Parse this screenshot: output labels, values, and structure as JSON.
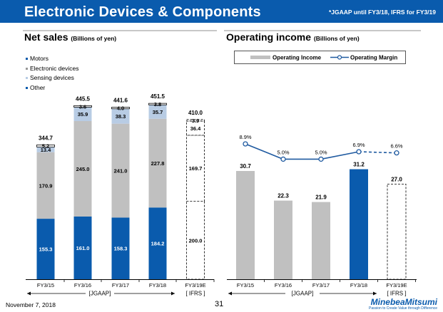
{
  "header": {
    "title": "Electronic Devices & Components",
    "note": "*JGAAP until FY3/18, IFRS for FY3/19"
  },
  "left_section": {
    "title": "Net sales",
    "unit": "(Billions of yen)"
  },
  "right_section": {
    "title": "Operating income",
    "unit": "(Billions of yen)"
  },
  "colors": {
    "header_bg": "#0a5bad",
    "motors": "#0a5bad",
    "electronic_devices": "#c0c0c0",
    "sensing_devices": "#b8cce4",
    "other": "#ffffff",
    "margin_line": "#1f5aa0"
  },
  "footer": {
    "date": "November 7, 2018",
    "page": "31",
    "logo": "MinebeaMitsumi",
    "tagline": "Passion to Create Value through Difference"
  },
  "chart_data": [
    {
      "type": "bar",
      "stacked": true,
      "title": "Net sales (Billions of yen)",
      "categories": [
        "FY3/15",
        "FY3/16",
        "FY3/17",
        "FY3/18",
        "FY3/19E"
      ],
      "series": [
        {
          "name": "Motors",
          "values": [
            155.3,
            161.0,
            158.3,
            184.2,
            200.0
          ],
          "labels": [
            "155.3",
            "161.0",
            "158.3",
            "184.2",
            "200.0"
          ]
        },
        {
          "name": "Electronic devices",
          "values": [
            170.9,
            245.0,
            241.0,
            227.8,
            169.7
          ],
          "labels": [
            "170.9",
            "245.0",
            "241.0",
            "227.8",
            "169.7"
          ]
        },
        {
          "name": "Sensing devices",
          "values": [
            13.4,
            35.9,
            38.3,
            35.7,
            36.4
          ],
          "labels": [
            "13.4",
            "35.9",
            "38.3",
            "35.7",
            "36.4"
          ]
        },
        {
          "name": "Other",
          "values": [
            5.2,
            3.6,
            4.0,
            3.8,
            3.9
          ],
          "labels": [
            "5.2",
            "3.6",
            "4.0",
            "3.8",
            "3.9"
          ]
        }
      ],
      "totals": [
        "344.7",
        "445.5",
        "441.6",
        "451.5",
        "410.0"
      ],
      "legend": [
        "Motors",
        "Electronic devices",
        "Sensing devices",
        "Other"
      ],
      "legend_position": "top-left",
      "estimate_category": "FY3/19E",
      "period_labels": [
        "[JGAAP]",
        "[ IFRS ]"
      ],
      "ylim": [
        0,
        480
      ]
    },
    {
      "type": "bar",
      "title": "Operating income (Billions of yen)",
      "categories": [
        "FY3/15",
        "FY3/16",
        "FY3/17",
        "FY3/18",
        "FY3/19E"
      ],
      "series": [
        {
          "name": "Operating Income",
          "values": [
            30.7,
            22.3,
            21.9,
            31.2,
            27.0
          ],
          "labels": [
            "30.7",
            "22.3",
            "21.9",
            "31.2",
            "27.0"
          ]
        }
      ],
      "line_series": {
        "name": "Operating Margin",
        "values": [
          8.9,
          5.0,
          5.0,
          6.9,
          6.6
        ],
        "labels": [
          "8.9%",
          "5.0%",
          "5.0%",
          "6.9%",
          "6.6%"
        ],
        "ylim": [
          0,
          20
        ]
      },
      "legend": [
        "Operating Income",
        "Operating Margin"
      ],
      "legend_position": "top",
      "estimate_category": "FY3/19E",
      "period_labels": [
        "[JGAAP]",
        "[ IFRS ]"
      ],
      "ylim": [
        0,
        45
      ]
    }
  ]
}
